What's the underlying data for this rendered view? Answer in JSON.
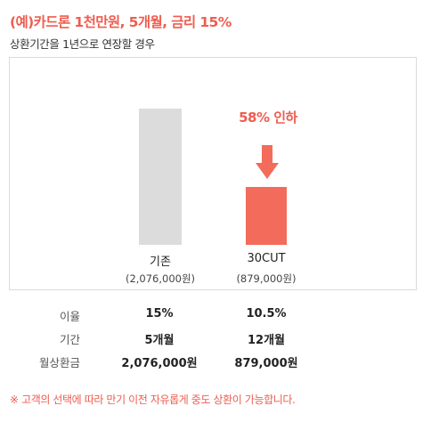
{
  "header": {
    "title": "(예)카드론 1천만원, 5개월, 금리 15%",
    "subtitle": "상환기간을 1년으로 연장할 경우"
  },
  "chart": {
    "reduction_label": "58% 인하",
    "before": {
      "label": "기존",
      "amount": "(2,076,000원)",
      "color": "#dcdcdc"
    },
    "after": {
      "label": "30CUT",
      "amount": "(879,000원)",
      "color": "#f26b5b"
    }
  },
  "chart_data": {
    "type": "bar",
    "categories": [
      "기존",
      "30CUT"
    ],
    "values": [
      2076000,
      879000
    ],
    "unit": "원",
    "annotation": "58% 인하"
  },
  "table": {
    "rows": [
      {
        "label": "이율",
        "before": "15%",
        "after": "10.5%"
      },
      {
        "label": "기간",
        "before": "5개월",
        "after": "12개월"
      },
      {
        "label": "월상환금",
        "before": "2,076,000원",
        "after": "879,000원"
      }
    ]
  },
  "footnote": "※ 고객의 선택에 따라 만기 이전 자유롭게 중도 상환이 가능합니다.",
  "colors": {
    "accent": "#ee5d4f",
    "bar_after": "#f26b5b",
    "bar_before": "#dcdcdc"
  }
}
